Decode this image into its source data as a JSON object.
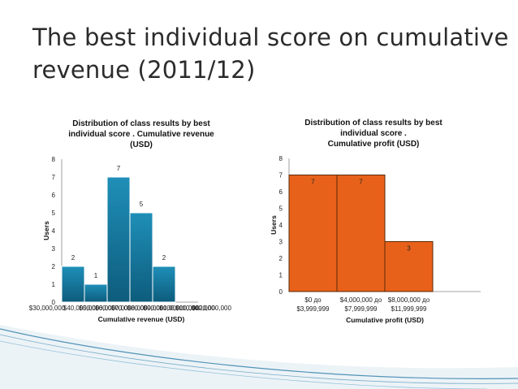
{
  "slide": {
    "title_line1": "The best individual score on cumulative",
    "title_line2": "revenue (2011/12)"
  },
  "colors": {
    "left_bar": "#1f8fb8",
    "left_bar_dark": "#0d5c7c",
    "right_bar": "#e8611a",
    "deco_blue": "#2a7ba6"
  },
  "chart_data": [
    {
      "type": "bar",
      "title_lines": [
        "Distribution of class results by best",
        "individual score . Cumulative revenue",
        "(USD)"
      ],
      "xlabel": "Cumulative revenue (USD)",
      "ylabel": "Users",
      "ylim": [
        0,
        8
      ],
      "yticks": [
        0,
        1,
        2,
        3,
        4,
        5,
        6,
        7,
        8
      ],
      "values": [
        2,
        1,
        7,
        5,
        2
      ],
      "x_tick_labels": [
        "$30,000,000",
        "$40,000,000",
        "$50,000,000",
        "$60,000,000",
        "$70,000,000",
        "$80,000,000",
        "$90,000,000",
        "$100,000,000",
        "$110,000,000",
        "$120,000,000"
      ],
      "grid": false,
      "legend": "none"
    },
    {
      "type": "bar",
      "title_lines": [
        "Distribution of class results by best",
        "individual score .",
        "Cumulative profit (USD)"
      ],
      "xlabel": "Cumulative profit (USD)",
      "ylabel": "Users",
      "ylim": [
        0,
        8
      ],
      "yticks": [
        0,
        1,
        2,
        3,
        4,
        5,
        6,
        7,
        8
      ],
      "categories": [
        [
          "$0 до",
          "$3,999,999"
        ],
        [
          "$4,000,000 до",
          "$7,999,999"
        ],
        [
          "$8,000,000 до",
          "$11,999,999"
        ]
      ],
      "values": [
        7,
        7,
        3
      ],
      "grid": false,
      "legend": "none"
    }
  ]
}
